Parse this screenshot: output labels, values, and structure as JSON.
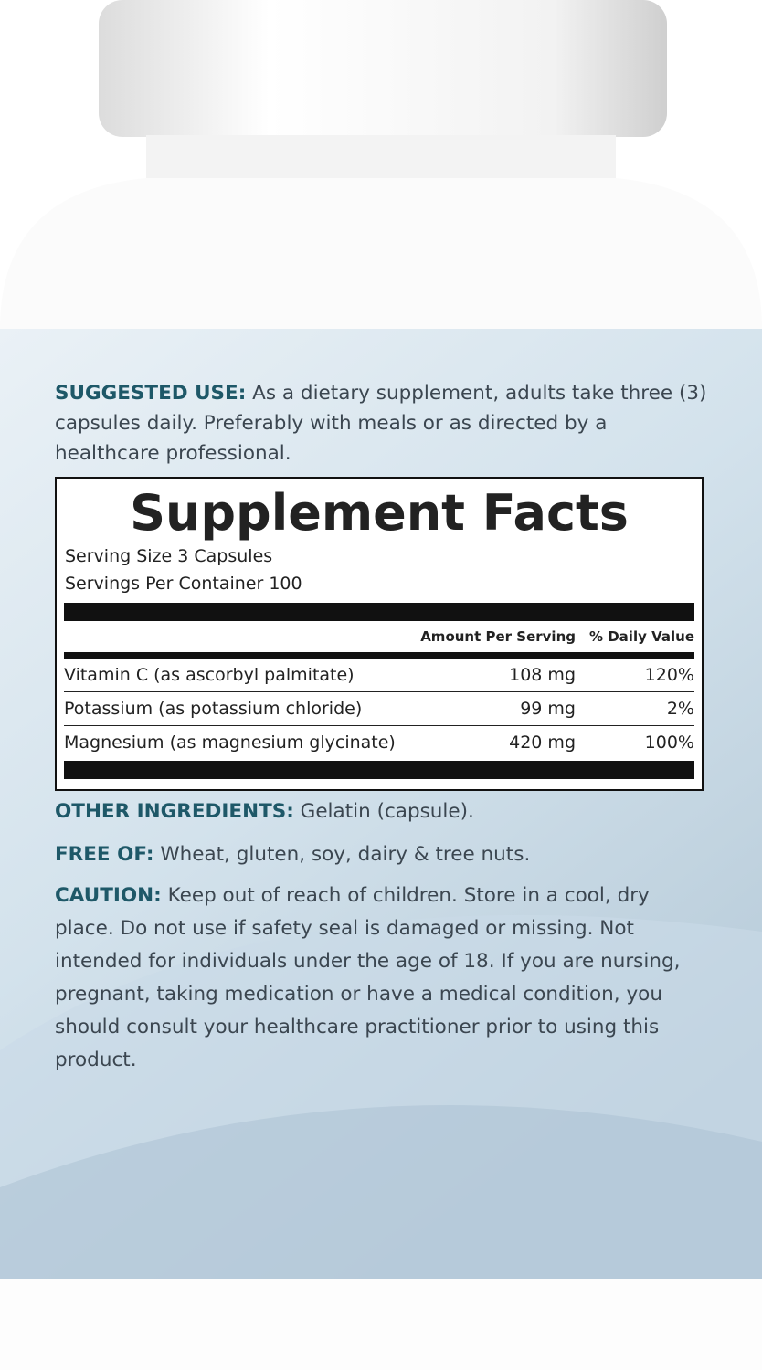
{
  "suggested_use": {
    "label": "SUGGESTED USE:",
    "text": "As a dietary supplement, adults take three (3) capsules daily. Preferably with meals or as directed by a healthcare professional."
  },
  "supplement_facts": {
    "title": "Supplement Facts",
    "serving_size": "Serving Size 3 Capsules",
    "servings_per_container": "Servings Per Container 100",
    "columns": [
      "Amount Per Serving",
      "% Daily Value"
    ],
    "rows": [
      [
        "Vitamin C (as ascorbyl palmitate)",
        "108 mg",
        "120%"
      ],
      [
        "Potassium (as potassium chloride)",
        "99 mg",
        "2%"
      ],
      [
        "Magnesium (as magnesium glycinate)",
        "420 mg",
        "100%"
      ]
    ]
  },
  "other_ingredients": {
    "label": "OTHER INGREDIENTS:",
    "text": "Gelatin (capsule)."
  },
  "free_of": {
    "label": "FREE OF:",
    "text": "Wheat, gluten, soy, dairy & tree nuts."
  },
  "caution": {
    "label": "CAUTION:",
    "text": "Keep out of reach of children. Store in a cool, dry place. Do not use if safety seal is damaged or missing. Not intended for individuals under the age of 18. If you are nursing, pregnant, taking medication or have a medical condition, you should consult your healthcare practitioner prior to using this product."
  }
}
